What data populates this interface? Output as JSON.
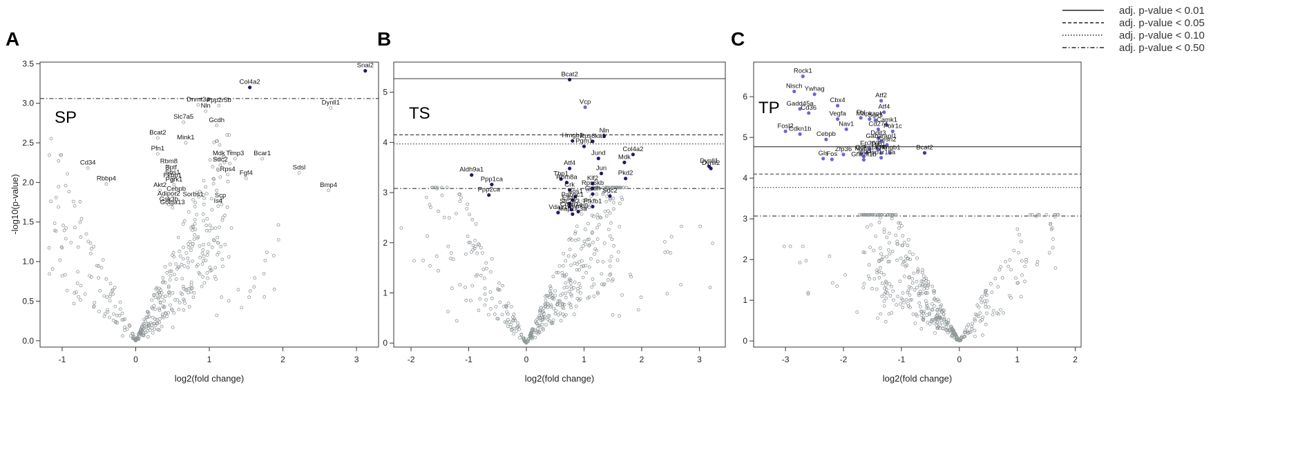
{
  "legend": {
    "entries": [
      {
        "label": "adj. p-value < 0.01",
        "dash": "solid"
      },
      {
        "label": "adj. p-value < 0.05",
        "dash": "dashed"
      },
      {
        "label": "adj. p-value < 0.10",
        "dash": "dotted"
      },
      {
        "label": "adj. p-value < 0.50",
        "dash": "dotdash"
      }
    ]
  },
  "colors": {
    "nonsig": "#8c9496",
    "dark": "#1f1a66",
    "mid": "#3b34a8",
    "light": "#6b66d8"
  },
  "chart_data": [
    {
      "panel": "A",
      "tag": "SP",
      "type": "scatter",
      "xlabel": "log2(fold change)",
      "ylabel": "-log10(p-value)",
      "xlim": [
        -1.3,
        3.3
      ],
      "ylim": [
        -0.08,
        3.52
      ],
      "xticks": [
        "-1",
        "0",
        "1",
        "2",
        "3"
      ],
      "yticks": [
        "0.0",
        "0.5",
        "1.0",
        "1.5",
        "2.0",
        "2.5",
        "3.0",
        "3.5"
      ],
      "thresholds": [
        {
          "y": 3.06,
          "dash": "dotdash"
        }
      ],
      "labeled": [
        {
          "name": "Snai2",
          "x": 3.12,
          "y": 3.41,
          "color": "dark"
        },
        {
          "name": "Col4a2",
          "x": 1.55,
          "y": 3.2,
          "color": "dark"
        },
        {
          "name": "Dnmt3a",
          "x": 0.85,
          "y": 2.98
        },
        {
          "name": "Ppp2r5b",
          "x": 1.13,
          "y": 2.97
        },
        {
          "name": "Nln",
          "x": 0.95,
          "y": 2.9
        },
        {
          "name": "Dynll1",
          "x": 2.65,
          "y": 2.94
        },
        {
          "name": "Slc7a5",
          "x": 0.65,
          "y": 2.76
        },
        {
          "name": "Gcdh",
          "x": 1.1,
          "y": 2.72
        },
        {
          "name": "Bcat2",
          "x": 0.3,
          "y": 2.56
        },
        {
          "name": "Mink1",
          "x": 0.68,
          "y": 2.5
        },
        {
          "name": "Pfn1",
          "x": 0.3,
          "y": 2.36
        },
        {
          "name": "Mdk",
          "x": 1.13,
          "y": 2.3
        },
        {
          "name": "Timp3",
          "x": 1.35,
          "y": 2.3
        },
        {
          "name": "Bcar1",
          "x": 1.72,
          "y": 2.3
        },
        {
          "name": "Sdc2",
          "x": 1.15,
          "y": 2.22
        },
        {
          "name": "Cd34",
          "x": -0.65,
          "y": 2.18
        },
        {
          "name": "Rbm8",
          "x": 0.45,
          "y": 2.2
        },
        {
          "name": "Rps4",
          "x": 1.25,
          "y": 2.1
        },
        {
          "name": "Fgf4",
          "x": 1.5,
          "y": 2.05
        },
        {
          "name": "Sdsl",
          "x": 2.22,
          "y": 2.12
        },
        {
          "name": "Bptf",
          "x": 0.48,
          "y": 2.12
        },
        {
          "name": "Sos1",
          "x": 0.5,
          "y": 2.06
        },
        {
          "name": "Fkbp1",
          "x": 0.5,
          "y": 2.02
        },
        {
          "name": "Rbbp4",
          "x": -0.4,
          "y": 1.98
        },
        {
          "name": "Pgrk1",
          "x": 0.52,
          "y": 1.97
        },
        {
          "name": "Akt2",
          "x": 0.33,
          "y": 1.9
        },
        {
          "name": "Cebpb",
          "x": 0.55,
          "y": 1.85
        },
        {
          "name": "Adipor2",
          "x": 0.45,
          "y": 1.79
        },
        {
          "name": "Sorbs1",
          "x": 0.78,
          "y": 1.78
        },
        {
          "name": "Gsk3b",
          "x": 0.45,
          "y": 1.72
        },
        {
          "name": "Golga13",
          "x": 0.5,
          "y": 1.68
        },
        {
          "name": "Scp",
          "x": 1.15,
          "y": 1.77
        },
        {
          "name": "Is4",
          "x": 1.12,
          "y": 1.7
        },
        {
          "name": "Bmp4",
          "x": 2.62,
          "y": 1.9
        }
      ]
    },
    {
      "panel": "B",
      "tag": "TS",
      "type": "scatter",
      "xlabel": "log2(fold change)",
      "ylabel": "",
      "xlim": [
        -2.3,
        3.45
      ],
      "ylim": [
        -0.08,
        5.6
      ],
      "xticks": [
        "-2",
        "-1",
        "0",
        "1",
        "2",
        "3"
      ],
      "yticks": [
        "0",
        "1",
        "2",
        "3",
        "4",
        "5"
      ],
      "thresholds": [
        {
          "y": 5.27,
          "dash": "solid"
        },
        {
          "y": 4.15,
          "dash": "dashed"
        },
        {
          "y": 3.97,
          "dash": "dotted"
        },
        {
          "y": 3.08,
          "dash": "dotdash"
        }
      ],
      "labeled": [
        {
          "name": "Bcat2",
          "x": 0.75,
          "y": 5.25,
          "color": "dark"
        },
        {
          "name": "Vcp",
          "x": 1.02,
          "y": 4.7,
          "color": "light"
        },
        {
          "name": "Nln",
          "x": 1.35,
          "y": 4.13,
          "color": "dark"
        },
        {
          "name": "Hmgb1",
          "x": 0.8,
          "y": 4.03,
          "color": "dark"
        },
        {
          "name": "Rps6ka1",
          "x": 1.15,
          "y": 4.02,
          "color": "dark"
        },
        {
          "name": "Pgm1",
          "x": 1.0,
          "y": 3.92,
          "color": "dark"
        },
        {
          "name": "Col4a2",
          "x": 1.85,
          "y": 3.76,
          "color": "dark"
        },
        {
          "name": "Jund",
          "x": 1.25,
          "y": 3.68,
          "color": "dark"
        },
        {
          "name": "Mdk",
          "x": 1.7,
          "y": 3.6,
          "color": "dark"
        },
        {
          "name": "Atf4",
          "x": 0.75,
          "y": 3.48,
          "color": "dark"
        },
        {
          "name": "Dynll1",
          "x": 3.17,
          "y": 3.52,
          "color": "dark"
        },
        {
          "name": "Dynll2",
          "x": 3.2,
          "y": 3.48,
          "color": "dark"
        },
        {
          "name": "Aldh9a1",
          "x": -0.95,
          "y": 3.35,
          "color": "dark"
        },
        {
          "name": "Jun",
          "x": 1.3,
          "y": 3.38,
          "color": "dark"
        },
        {
          "name": "Pkd2",
          "x": 1.72,
          "y": 3.28,
          "color": "dark"
        },
        {
          "name": "Tbp1",
          "x": 0.6,
          "y": 3.27,
          "color": "dark"
        },
        {
          "name": "Klf2",
          "x": 1.15,
          "y": 3.18,
          "color": "dark"
        },
        {
          "name": "Rbm8a",
          "x": 0.7,
          "y": 3.2,
          "color": "dark"
        },
        {
          "name": "Ppp1ca",
          "x": -0.6,
          "y": 3.16,
          "color": "dark"
        },
        {
          "name": "Rps6kb",
          "x": 1.15,
          "y": 3.08,
          "color": "dark"
        },
        {
          "name": "Crk",
          "x": 0.75,
          "y": 3.05,
          "color": "dark"
        },
        {
          "name": "Gcdh",
          "x": 1.15,
          "y": 2.97,
          "color": "dark"
        },
        {
          "name": "Sdc2",
          "x": 1.45,
          "y": 2.93,
          "color": "dark"
        },
        {
          "name": "Ppp2ca",
          "x": -0.65,
          "y": 2.95,
          "color": "dark"
        },
        {
          "name": "Sos1",
          "x": 0.85,
          "y": 2.92,
          "color": "dark"
        },
        {
          "name": "Pabpc1",
          "x": 0.8,
          "y": 2.85,
          "color": "dark"
        },
        {
          "name": "Eif4e",
          "x": 0.75,
          "y": 2.78,
          "color": "dark"
        },
        {
          "name": "Slc2a3",
          "x": 0.75,
          "y": 2.72,
          "color": "dark"
        },
        {
          "name": "Pfkfb1",
          "x": 1.15,
          "y": 2.72,
          "color": "dark"
        },
        {
          "name": "Cdkn1a",
          "x": 0.78,
          "y": 2.66,
          "color": "dark"
        },
        {
          "name": "Psmd9",
          "x": 0.9,
          "y": 2.62,
          "color": "dark"
        },
        {
          "name": "Vdac1",
          "x": 0.55,
          "y": 2.6,
          "color": "dark"
        },
        {
          "name": "Map1lc3a",
          "x": 0.8,
          "y": 2.57,
          "color": "dark"
        }
      ]
    },
    {
      "panel": "C",
      "tag": "TP",
      "type": "scatter",
      "xlabel": "log2(fold change)",
      "ylabel": "",
      "xlim": [
        -3.55,
        2.1
      ],
      "ylim": [
        -0.15,
        6.85
      ],
      "xticks": [
        "-3",
        "-2",
        "-1",
        "0",
        "1",
        "2"
      ],
      "yticks": [
        "0",
        "1",
        "2",
        "3",
        "4",
        "5",
        "6"
      ],
      "thresholds": [
        {
          "y": 4.77,
          "dash": "solid"
        },
        {
          "y": 4.1,
          "dash": "dashed"
        },
        {
          "y": 3.77,
          "dash": "dotted"
        },
        {
          "y": 3.07,
          "dash": "dotdash"
        }
      ],
      "labeled": [
        {
          "name": "Rock1",
          "x": -2.7,
          "y": 6.5,
          "color": "light"
        },
        {
          "name": "Nisch",
          "x": -2.85,
          "y": 6.13,
          "color": "light"
        },
        {
          "name": "Ywhag",
          "x": -2.5,
          "y": 6.06,
          "color": "light"
        },
        {
          "name": "Atf2",
          "x": -1.35,
          "y": 5.9,
          "color": "light"
        },
        {
          "name": "Cbx4",
          "x": -2.1,
          "y": 5.78,
          "color": "light"
        },
        {
          "name": "Gadd45a",
          "x": -2.75,
          "y": 5.7,
          "color": "light"
        },
        {
          "name": "Cd36",
          "x": -2.6,
          "y": 5.6,
          "color": "light"
        },
        {
          "name": "Atf4",
          "x": -1.3,
          "y": 5.62,
          "color": "light"
        },
        {
          "name": "Vegfa",
          "x": -2.1,
          "y": 5.45,
          "color": "light"
        },
        {
          "name": "Fbl",
          "x": -1.7,
          "y": 5.48,
          "color": "light"
        },
        {
          "name": "Mapkapk",
          "x": -1.55,
          "y": 5.45,
          "color": "light"
        },
        {
          "name": "Sgk1",
          "x": -1.45,
          "y": 5.42,
          "color": "light"
        },
        {
          "name": "Camk1",
          "x": -1.25,
          "y": 5.3,
          "color": "light"
        },
        {
          "name": "Nav1",
          "x": -1.95,
          "y": 5.2,
          "color": "light"
        },
        {
          "name": "Cd274",
          "x": -1.4,
          "y": 5.2,
          "color": "light"
        },
        {
          "name": "Polr1c",
          "x": -1.15,
          "y": 5.15,
          "color": "light"
        },
        {
          "name": "Fosl2",
          "x": -3.0,
          "y": 5.15,
          "color": "light"
        },
        {
          "name": "Cdkn1b",
          "x": -2.75,
          "y": 5.08,
          "color": "light"
        },
        {
          "name": "Cebpb",
          "x": -2.3,
          "y": 4.95,
          "color": "light"
        },
        {
          "name": "Ddit3",
          "x": -1.4,
          "y": 4.98,
          "color": "light"
        },
        {
          "name": "Gabarapl1",
          "x": -1.35,
          "y": 4.9,
          "color": "light"
        },
        {
          "name": "Sesn2",
          "x": -1.25,
          "y": 4.82,
          "color": "light"
        },
        {
          "name": "Ep300",
          "x": -1.55,
          "y": 4.72,
          "color": "light"
        },
        {
          "name": "Trib1",
          "x": -1.4,
          "y": 4.7,
          "color": "light"
        },
        {
          "name": "Cdkn1a",
          "x": -1.6,
          "y": 4.62,
          "color": "light"
        },
        {
          "name": "Klf6",
          "x": -1.35,
          "y": 4.62,
          "color": "light"
        },
        {
          "name": "Hmgb1",
          "x": -1.2,
          "y": 4.62,
          "color": "light"
        },
        {
          "name": "Myc",
          "x": -1.7,
          "y": 4.6,
          "color": "light"
        },
        {
          "name": "Zfp36",
          "x": -2.0,
          "y": 4.58,
          "color": "light"
        },
        {
          "name": "Jund",
          "x": -1.65,
          "y": 4.53,
          "color": "light"
        },
        {
          "name": "Ppp1r15a",
          "x": -1.35,
          "y": 4.5,
          "color": "light"
        },
        {
          "name": "Grami1b",
          "x": -1.65,
          "y": 4.45,
          "color": "light"
        },
        {
          "name": "Gls",
          "x": -2.35,
          "y": 4.48,
          "color": "light"
        },
        {
          "name": "Fos",
          "x": -2.2,
          "y": 4.46,
          "color": "light"
        },
        {
          "name": "Bcat2",
          "x": -0.6,
          "y": 4.62,
          "color": "mid"
        }
      ]
    }
  ]
}
